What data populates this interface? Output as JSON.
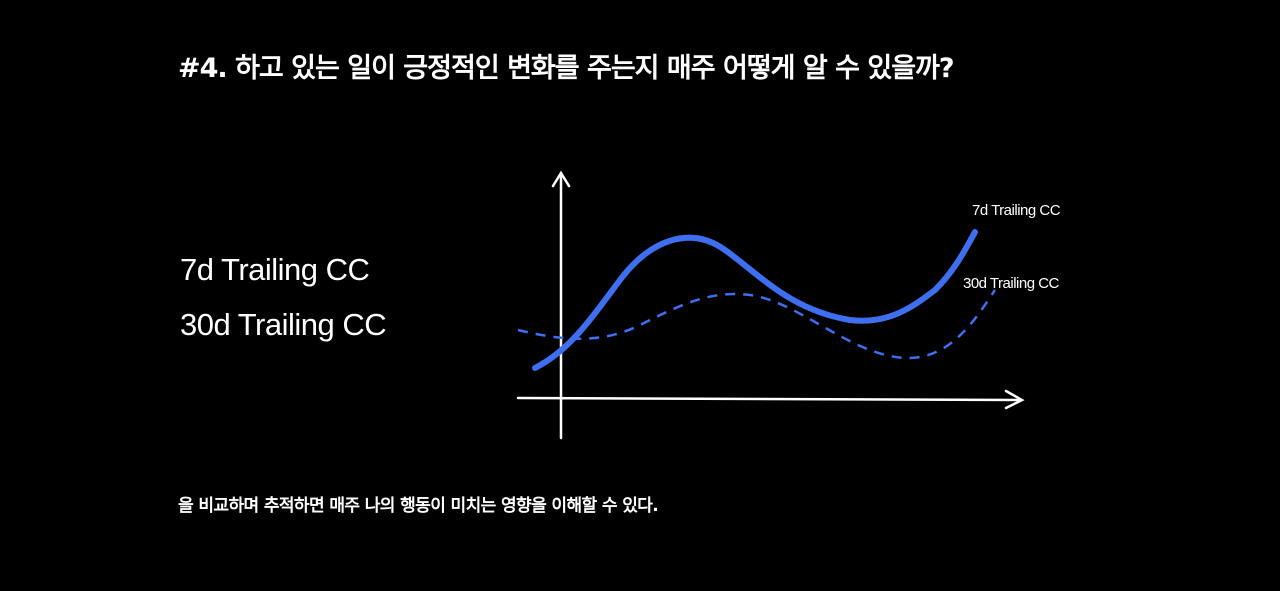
{
  "title": "#4. 하고 있는 일이 긍정적인 변화를 주는지 매주 어떻게 알 수 있을까?",
  "legend": [
    "7d  Trailing CC",
    "30d  Trailing CC"
  ],
  "diagram": {
    "series": [
      {
        "label": "7d Trailing CC",
        "style": "solid",
        "color": "#3d6ff0"
      },
      {
        "label": "30d Trailing CC",
        "style": "dashed",
        "color": "#3d6ff0"
      }
    ],
    "axis_color": "#ffffff"
  },
  "caption": "을 비교하며 추적하면 매주 나의 행동이 미치는 영향을 이해할 수 있다."
}
